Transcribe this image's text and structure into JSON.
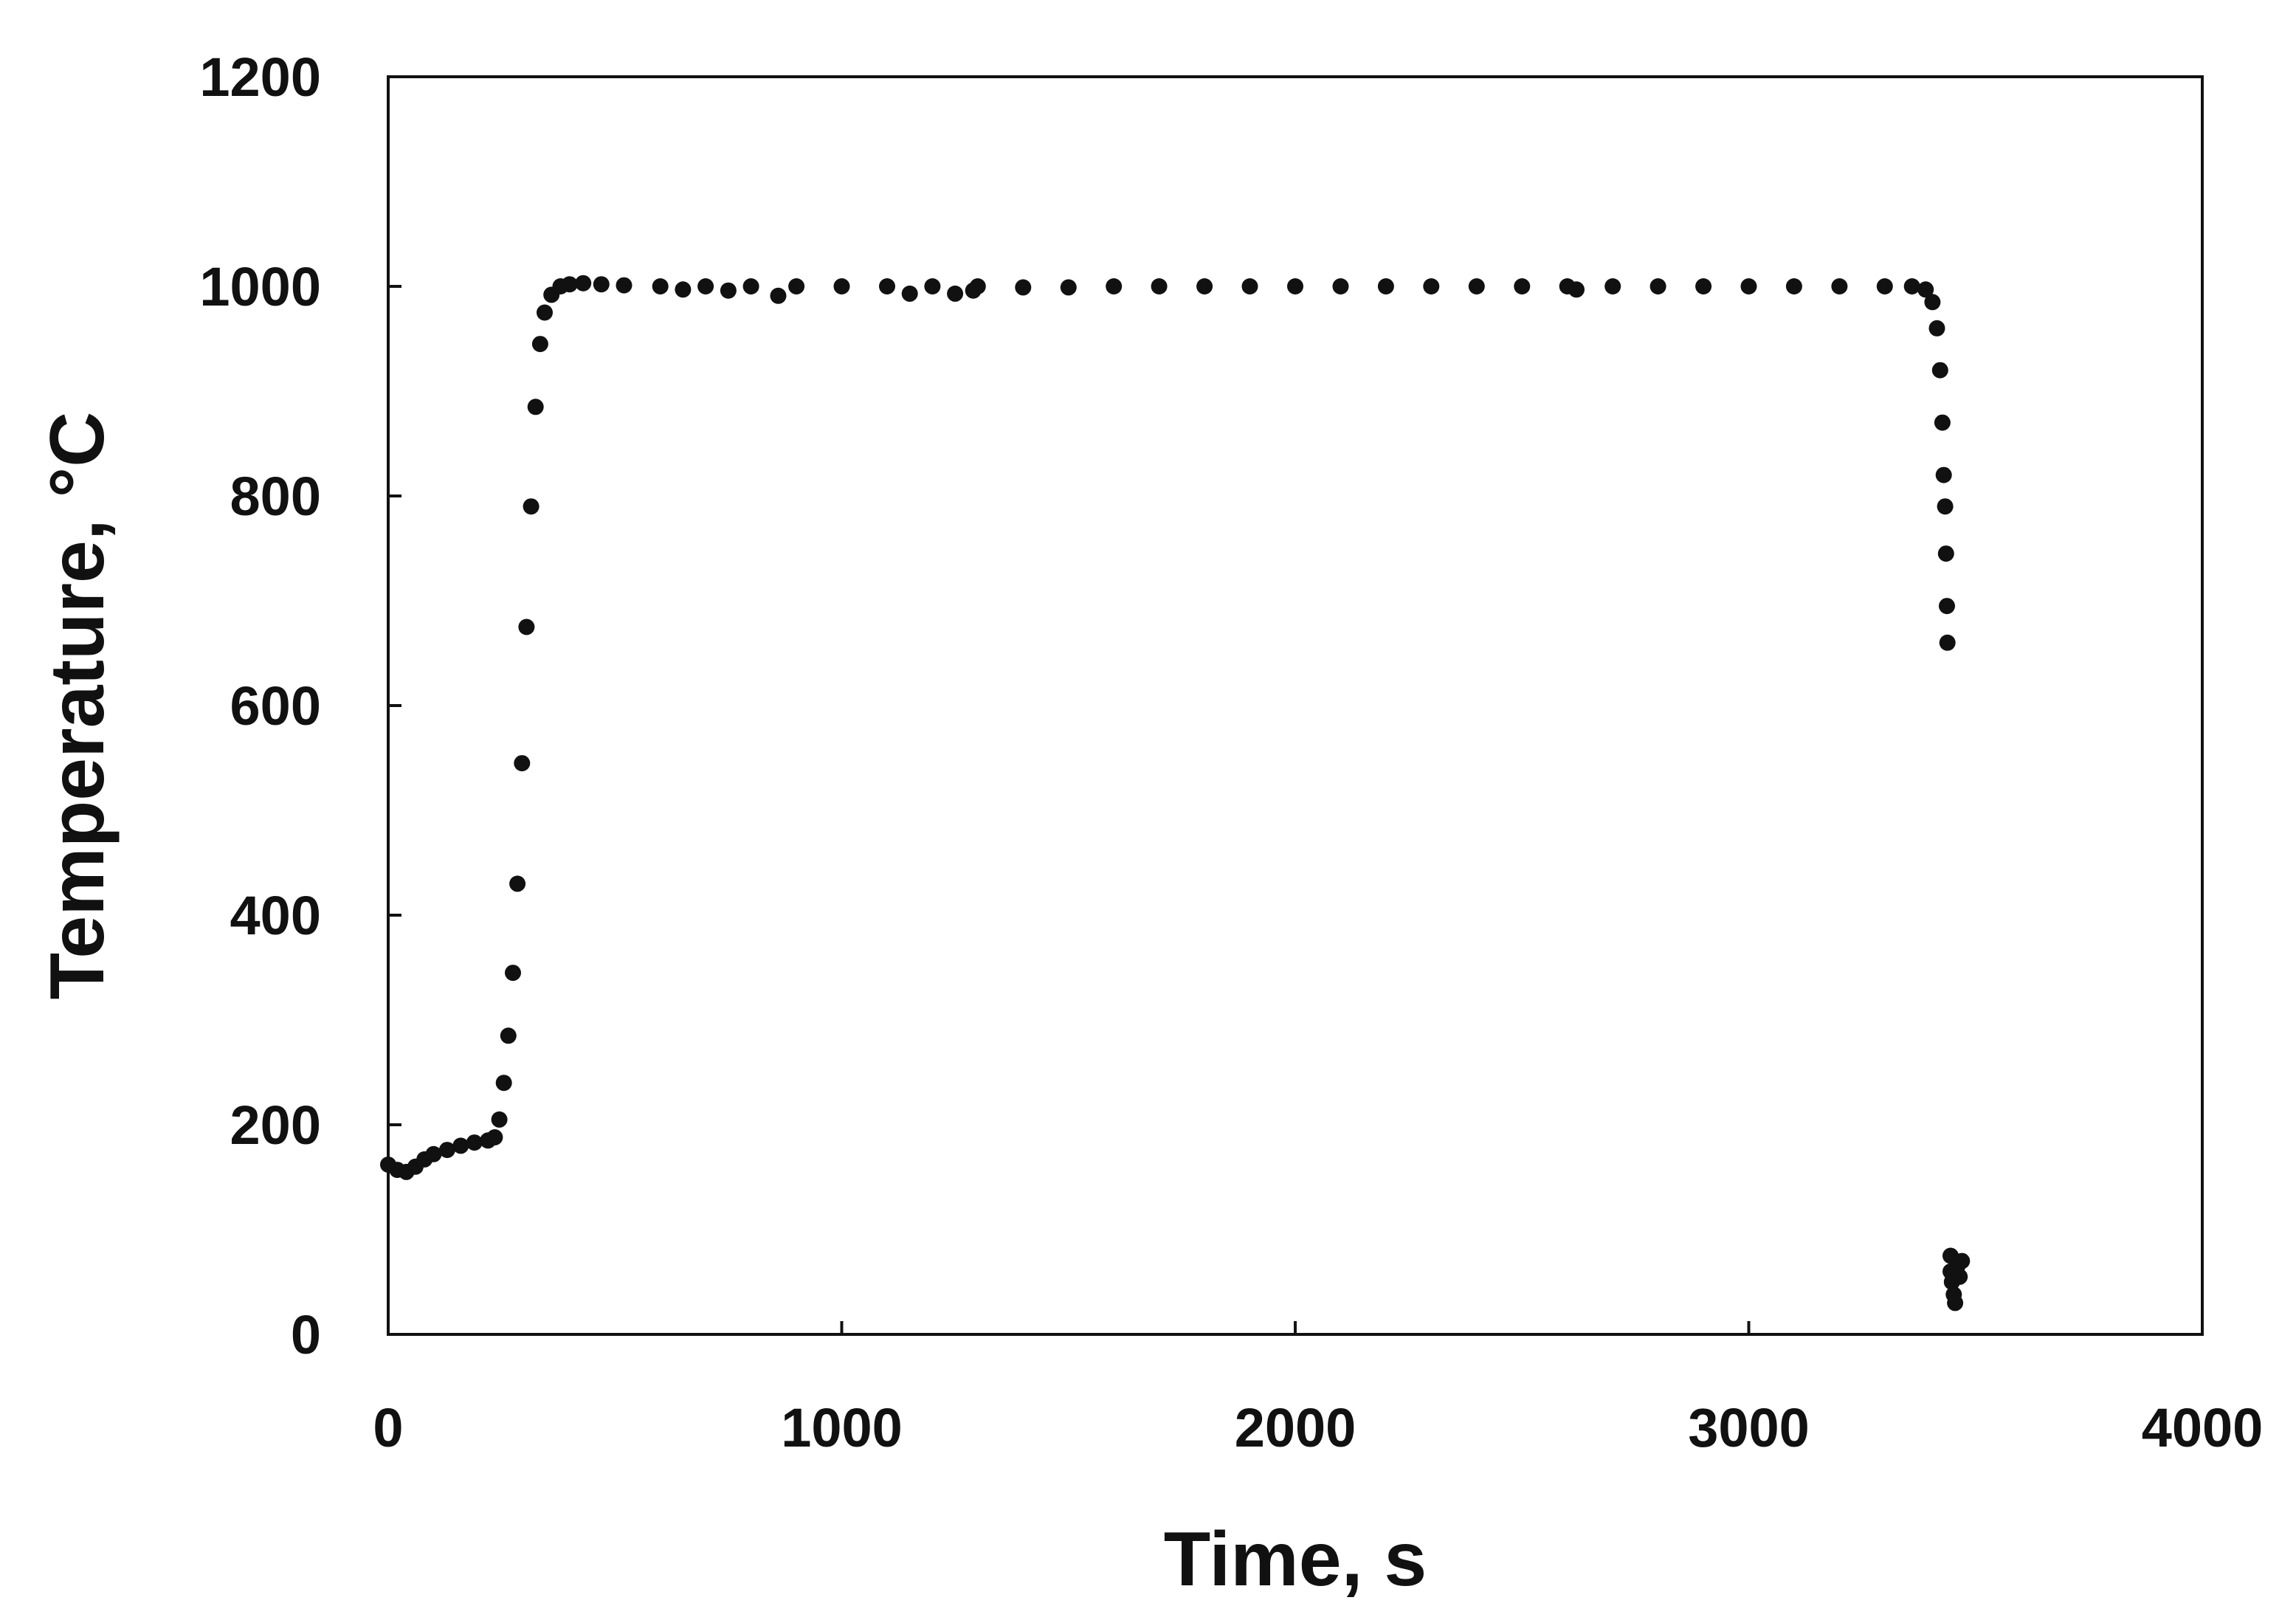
{
  "chart_data": {
    "type": "scatter",
    "xlabel": "Time, s",
    "ylabel": "Temperature, °C",
    "xlim": [
      0,
      4000
    ],
    "ylim": [
      0,
      1200
    ],
    "x_ticks": [
      "0",
      "1000",
      "2000",
      "3000",
      "4000"
    ],
    "y_ticks": [
      "0",
      "200",
      "400",
      "600",
      "800",
      "1000",
      "1200"
    ],
    "grid": false,
    "legend": "none",
    "marker_color": "#111111",
    "series": [
      {
        "points": [
          [
            0,
            162
          ],
          [
            20,
            157
          ],
          [
            40,
            155
          ],
          [
            60,
            160
          ],
          [
            80,
            167
          ],
          [
            100,
            172
          ],
          [
            130,
            176
          ],
          [
            160,
            180
          ],
          [
            190,
            183
          ],
          [
            220,
            185
          ],
          [
            235,
            188
          ],
          [
            245,
            205
          ],
          [
            255,
            240
          ],
          [
            265,
            285
          ],
          [
            275,
            345
          ],
          [
            285,
            430
          ],
          [
            295,
            545
          ],
          [
            305,
            675
          ],
          [
            315,
            790
          ],
          [
            325,
            885
          ],
          [
            335,
            945
          ],
          [
            345,
            975
          ],
          [
            360,
            992
          ],
          [
            380,
            1000
          ],
          [
            400,
            1002
          ],
          [
            430,
            1003
          ],
          [
            470,
            1002
          ],
          [
            520,
            1001
          ],
          [
            600,
            1000
          ],
          [
            650,
            997
          ],
          [
            700,
            1000
          ],
          [
            750,
            996
          ],
          [
            800,
            1000
          ],
          [
            860,
            991
          ],
          [
            900,
            1000
          ],
          [
            1000,
            1000
          ],
          [
            1100,
            1000
          ],
          [
            1150,
            993
          ],
          [
            1200,
            1000
          ],
          [
            1250,
            993
          ],
          [
            1290,
            996
          ],
          [
            1300,
            1000
          ],
          [
            1400,
            999
          ],
          [
            1500,
            999
          ],
          [
            1600,
            1000
          ],
          [
            1700,
            1000
          ],
          [
            1800,
            1000
          ],
          [
            1900,
            1000
          ],
          [
            2000,
            1000
          ],
          [
            2100,
            1000
          ],
          [
            2200,
            1000
          ],
          [
            2300,
            1000
          ],
          [
            2400,
            1000
          ],
          [
            2500,
            1000
          ],
          [
            2600,
            1000
          ],
          [
            2620,
            997
          ],
          [
            2700,
            1000
          ],
          [
            2800,
            1000
          ],
          [
            2900,
            1000
          ],
          [
            3000,
            1000
          ],
          [
            3100,
            1000
          ],
          [
            3200,
            1000
          ],
          [
            3300,
            1000
          ],
          [
            3360,
            1000
          ],
          [
            3390,
            997
          ],
          [
            3405,
            985
          ],
          [
            3415,
            960
          ],
          [
            3422,
            920
          ],
          [
            3427,
            870
          ],
          [
            3430,
            820
          ],
          [
            3433,
            790
          ],
          [
            3435,
            745
          ],
          [
            3437,
            695
          ],
          [
            3438,
            660
          ],
          [
            3445,
            75
          ],
          [
            3445,
            60
          ],
          [
            3448,
            50
          ],
          [
            3452,
            38
          ],
          [
            3455,
            30
          ],
          [
            3460,
            65
          ],
          [
            3465,
            55
          ],
          [
            3470,
            70
          ]
        ]
      }
    ]
  }
}
